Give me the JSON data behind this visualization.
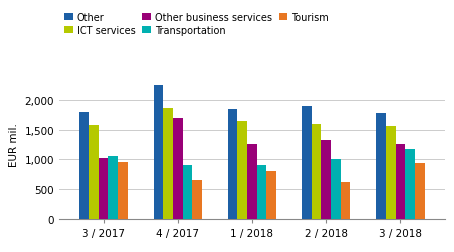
{
  "categories": [
    "3 / 2017",
    "4 / 2017",
    "1 / 2018",
    "2 / 2018",
    "3 / 2018"
  ],
  "series": {
    "Other": [
      1800,
      2250,
      1850,
      1900,
      1775
    ],
    "ICT services": [
      1570,
      1860,
      1640,
      1590,
      1560
    ],
    "Other business services": [
      1030,
      1700,
      1250,
      1330,
      1260
    ],
    "Transportation": [
      1060,
      910,
      910,
      1010,
      1175
    ],
    "Tourism": [
      950,
      650,
      800,
      615,
      935
    ]
  },
  "colors": {
    "Other": "#1c5fa5",
    "ICT services": "#b5c900",
    "Other business services": "#990077",
    "Transportation": "#00b0b0",
    "Tourism": "#e87722"
  },
  "legend_order": [
    "Other",
    "ICT services",
    "Other business services",
    "Transportation",
    "Tourism"
  ],
  "ylabel": "EUR mil.",
  "ylim": [
    0,
    2500
  ],
  "yticks": [
    0,
    500,
    1000,
    1500,
    2000
  ],
  "ytick_labels": [
    "0",
    "500",
    "1,000",
    "1,500",
    "2,000"
  ],
  "bar_width": 0.13,
  "background_color": "#ffffff",
  "grid_color": "#cccccc"
}
